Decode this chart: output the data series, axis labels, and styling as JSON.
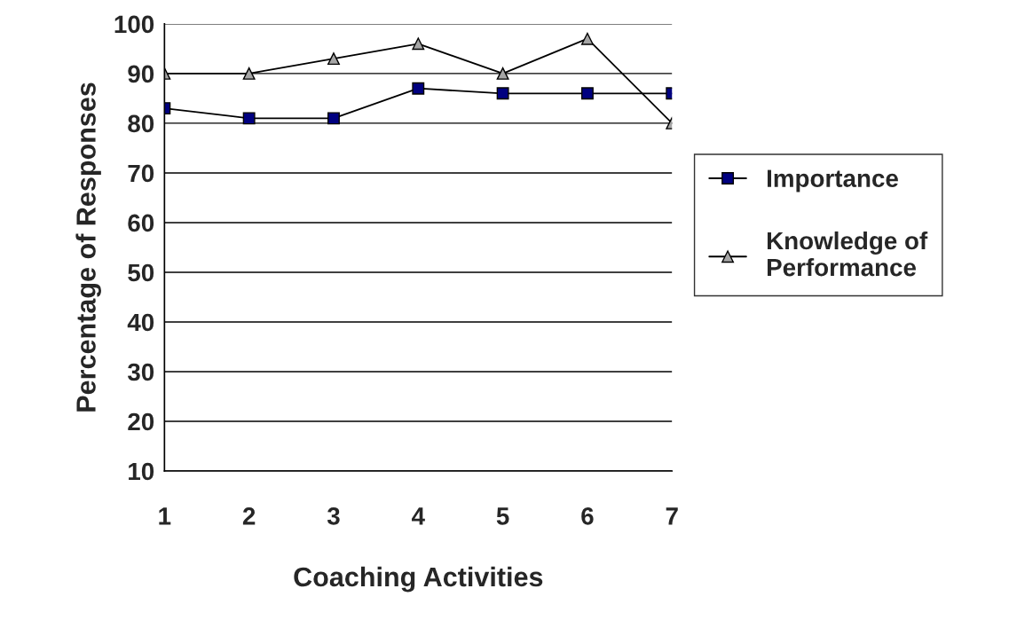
{
  "chart_data": {
    "type": "line",
    "xlabel": "Coaching Activities",
    "ylabel": "Percentage of Responses",
    "categories": [
      "1",
      "2",
      "3",
      "4",
      "5",
      "6",
      "7"
    ],
    "series": [
      {
        "name": "Importance",
        "color": "#000080",
        "marker": "square",
        "values": [
          83,
          81,
          81,
          87,
          86,
          86,
          86
        ]
      },
      {
        "name": "Knowledge of\nPerformance",
        "color": "#a6a6a6",
        "marker": "triangle",
        "values": [
          90,
          90,
          93,
          96,
          90,
          97,
          80
        ]
      }
    ],
    "ylim": [
      10,
      100
    ],
    "yticks": [
      10,
      20,
      30,
      40,
      50,
      60,
      70,
      80,
      90,
      100
    ],
    "grid": "y",
    "legend": "right",
    "line_style": "solid"
  }
}
